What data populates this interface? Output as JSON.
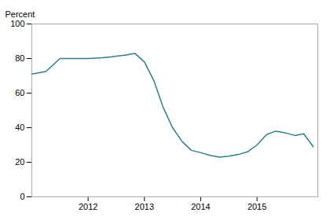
{
  "chart_data": {
    "type": "line",
    "x": [
      2011.0,
      2011.25,
      2011.5,
      2011.75,
      2012.0,
      2012.25,
      2012.42,
      2012.67,
      2012.83,
      2013.0,
      2013.17,
      2013.33,
      2013.5,
      2013.67,
      2013.83,
      2014.0,
      2014.17,
      2014.33,
      2014.5,
      2014.67,
      2014.83,
      2015.0,
      2015.17,
      2015.33,
      2015.5,
      2015.67,
      2015.83,
      2016.0
    ],
    "values": [
      71,
      72.5,
      80,
      80,
      80,
      80.5,
      81,
      82,
      83,
      78,
      67,
      52,
      40,
      32,
      27,
      25.5,
      24,
      23,
      23.5,
      24.5,
      26,
      30,
      36,
      38,
      37,
      35.5,
      36.5,
      29
    ],
    "color": "#2e7f8a",
    "ylabel": "Percent",
    "xlim": [
      2011.0,
      2016.08
    ],
    "ylim": [
      0,
      100
    ],
    "xticks": [
      2012,
      2013,
      2014,
      2015
    ],
    "yticks": [
      0,
      20,
      40,
      60,
      80,
      100
    ],
    "grid": false
  }
}
